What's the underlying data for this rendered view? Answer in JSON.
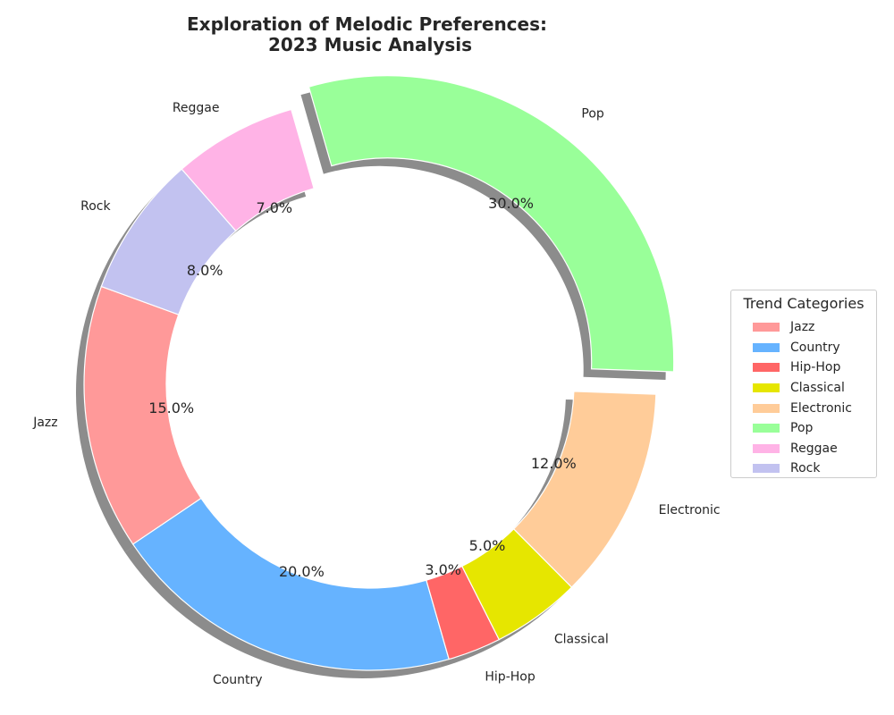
{
  "chart_data": {
    "type": "pie",
    "variant": "donut",
    "title": "Exploration of Melodic Preferences:\n2023 Music Analysis",
    "categories": [
      "Jazz",
      "Country",
      "Hip-Hop",
      "Classical",
      "Electronic",
      "Pop",
      "Reggae",
      "Rock"
    ],
    "values": [
      15.0,
      20.0,
      3.0,
      5.0,
      12.0,
      30.0,
      7.0,
      8.0
    ],
    "percent_labels": [
      "15.0%",
      "20.0%",
      "3.0%",
      "5.0%",
      "12.0%",
      "30.0%",
      "7.0%",
      "8.0%"
    ],
    "colors": [
      "#ff9999",
      "#66b3ff",
      "#ff6666",
      "#e6e600",
      "#ffcc99",
      "#99ff99",
      "#ffb3e6",
      "#c2c2f0"
    ],
    "exploded": [
      "Pop"
    ],
    "shadow": true,
    "start_angle": 160,
    "direction": "counterclockwise",
    "legend": {
      "title": "Trend Categories",
      "placement": "center-right"
    }
  }
}
